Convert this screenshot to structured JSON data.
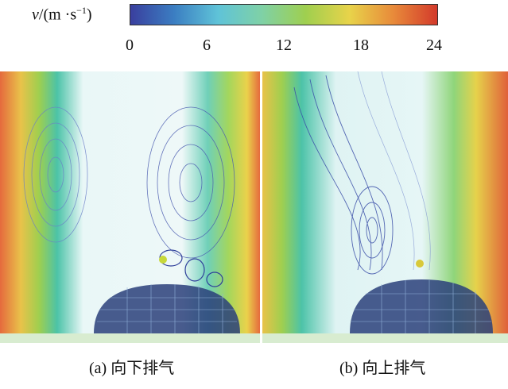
{
  "colorbar": {
    "label": "v/(m ·s",
    "label_var": "v",
    "label_unit": "/(m ·s",
    "label_exp": "−1",
    "label_close": ")",
    "ticks": [
      "0",
      "6",
      "12",
      "18",
      "24"
    ],
    "colors": [
      "#3a3f9e",
      "#3b7ec2",
      "#5fc3d8",
      "#7fd1a6",
      "#9fcf4f",
      "#e8d34a",
      "#e88a3a",
      "#d33a2b"
    ]
  },
  "panels": {
    "a": {
      "caption": "(a) 向下排气"
    },
    "b": {
      "caption": "(b) 向上排气"
    }
  }
}
